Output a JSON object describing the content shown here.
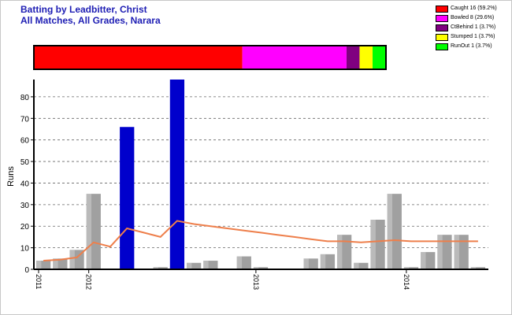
{
  "title_line1": "Batting by Leadbitter, Christ",
  "title_line2": "All Matches, All Grades, Narara",
  "dismissal_legend": [
    {
      "label": "Caught 16 (59.2%)",
      "color": "#ff0000",
      "fraction": 0.592
    },
    {
      "label": "Bowled 8 (29.6%)",
      "color": "#ff00ff",
      "fraction": 0.296
    },
    {
      "label": "CtBehind 1 (3.7%)",
      "color": "#800080",
      "fraction": 0.037
    },
    {
      "label": "Stumped 1 (3.7%)",
      "color": "#ffff00",
      "fraction": 0.037
    },
    {
      "label": "RunOut 1 (3.7%)",
      "color": "#00ff00",
      "fraction": 0.037
    }
  ],
  "chart_data": {
    "type": "bar",
    "ylabel": "Runs",
    "xlabel": "",
    "ylim": [
      0,
      88
    ],
    "yticks": [
      0,
      10,
      20,
      30,
      40,
      50,
      60,
      70,
      80
    ],
    "grid": true,
    "x_year_labels": [
      {
        "label": "2011",
        "at_index": 0
      },
      {
        "label": "2012",
        "at_index": 3
      },
      {
        "label": "2013",
        "at_index": 13
      },
      {
        "label": "2014",
        "at_index": 22
      }
    ],
    "innings_runs": [
      4,
      5,
      9,
      35,
      0,
      66,
      0,
      1,
      88,
      3,
      4,
      0,
      6,
      1,
      0,
      0,
      5,
      7,
      16,
      3,
      23,
      35,
      1,
      8,
      16,
      16,
      1
    ],
    "not_out": [
      false,
      false,
      false,
      false,
      false,
      true,
      false,
      false,
      true,
      false,
      false,
      false,
      false,
      false,
      false,
      false,
      false,
      false,
      false,
      false,
      false,
      false,
      false,
      false,
      false,
      false,
      false
    ],
    "series": [
      {
        "name": "",
        "type": "line",
        "color": "#ee7f4b",
        "values": [
          4,
          4.5,
          5.5,
          12.5,
          10.5,
          19,
          17,
          15,
          22.5,
          21,
          20,
          19,
          18,
          17,
          16,
          15,
          14,
          13,
          13,
          12.5,
          13,
          13.5,
          13,
          13,
          13,
          13,
          13
        ]
      }
    ],
    "colors": {
      "out": "#a0a0a0",
      "not_out": "#0000cc",
      "grid": "#666666"
    }
  }
}
